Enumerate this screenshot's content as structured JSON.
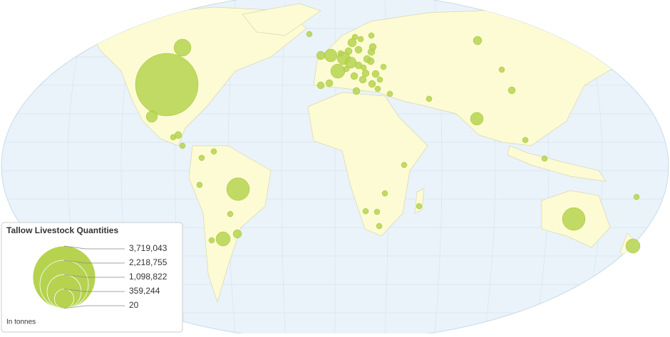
{
  "chart_data": {
    "type": "bubble-map",
    "title": "Tallow Livestock Quantities",
    "note": "In tonnes",
    "color": "#b5d34f",
    "legend_values": [
      {
        "value": 3719043,
        "label": "3,719,043"
      },
      {
        "value": 2218755,
        "label": "2,218,755"
      },
      {
        "value": 1098822,
        "label": "1,098,822"
      },
      {
        "value": 359244,
        "label": "359,244"
      },
      {
        "value": 20,
        "label": "20"
      }
    ],
    "values": [
      3719043,
      276000,
      123000,
      492000,
      192000,
      492000,
      192000,
      155000,
      69000,
      48000,
      192000,
      155000,
      155000,
      123000,
      69000,
      48000,
      48000,
      48000,
      48000,
      48000,
      48000,
      48000,
      48000,
      48000,
      48000,
      48000,
      48000,
      48000,
      31000,
      31000,
      31000,
      31000,
      48000,
      48000,
      31000,
      31000,
      31000,
      31000,
      31000,
      48000,
      31000,
      31000,
      31000,
      31000,
      31000,
      31000,
      69000,
      31000,
      31000,
      31000,
      31000,
      31000,
      31000,
      31000,
      31000,
      31000,
      31000,
      31000,
      69000,
      31000,
      31000,
      31000
    ]
  }
}
